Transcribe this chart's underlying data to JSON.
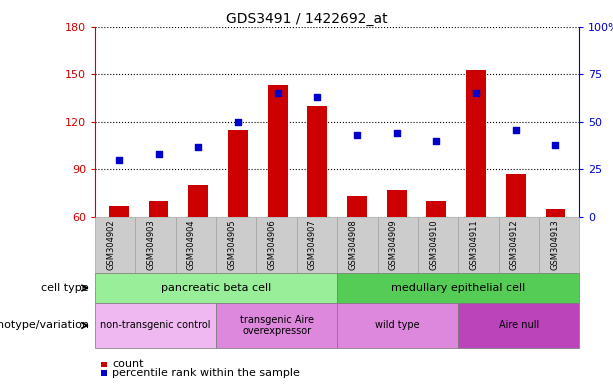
{
  "title": "GDS3491 / 1422692_at",
  "samples": [
    "GSM304902",
    "GSM304903",
    "GSM304904",
    "GSM304905",
    "GSM304906",
    "GSM304907",
    "GSM304908",
    "GSM304909",
    "GSM304910",
    "GSM304911",
    "GSM304912",
    "GSM304913"
  ],
  "bar_values": [
    67,
    70,
    80,
    115,
    143,
    130,
    73,
    77,
    70,
    153,
    87,
    65
  ],
  "dot_values": [
    30,
    33,
    37,
    50,
    65,
    63,
    43,
    44,
    40,
    65,
    46,
    38
  ],
  "ylim_left": [
    60,
    180
  ],
  "yticks_left": [
    60,
    90,
    120,
    150,
    180
  ],
  "ylim_right": [
    0,
    100
  ],
  "yticks_right": [
    0,
    25,
    50,
    75,
    100
  ],
  "bar_color": "#cc0000",
  "dot_color": "#0000cc",
  "bar_bottom": 60,
  "cell_type_groups": [
    {
      "label": "pancreatic beta cell",
      "start": 0,
      "end": 6,
      "color": "#99ee99"
    },
    {
      "label": "medullary epithelial cell",
      "start": 6,
      "end": 12,
      "color": "#55cc55"
    }
  ],
  "genotype_groups": [
    {
      "label": "non-transgenic control",
      "start": 0,
      "end": 3,
      "color": "#f0b8f0"
    },
    {
      "label": "transgenic Aire\noverexpressor",
      "start": 3,
      "end": 6,
      "color": "#dd88dd"
    },
    {
      "label": "wild type",
      "start": 6,
      "end": 9,
      "color": "#dd88dd"
    },
    {
      "label": "Aire null",
      "start": 9,
      "end": 12,
      "color": "#bb44bb"
    }
  ],
  "cell_type_label": "cell type",
  "genotype_label": "genotype/variation",
  "legend_count": "count",
  "legend_pct": "percentile rank within the sample",
  "left_axis_color": "#cc0000",
  "right_axis_color": "#0000cc",
  "xtick_bg": "#cccccc"
}
